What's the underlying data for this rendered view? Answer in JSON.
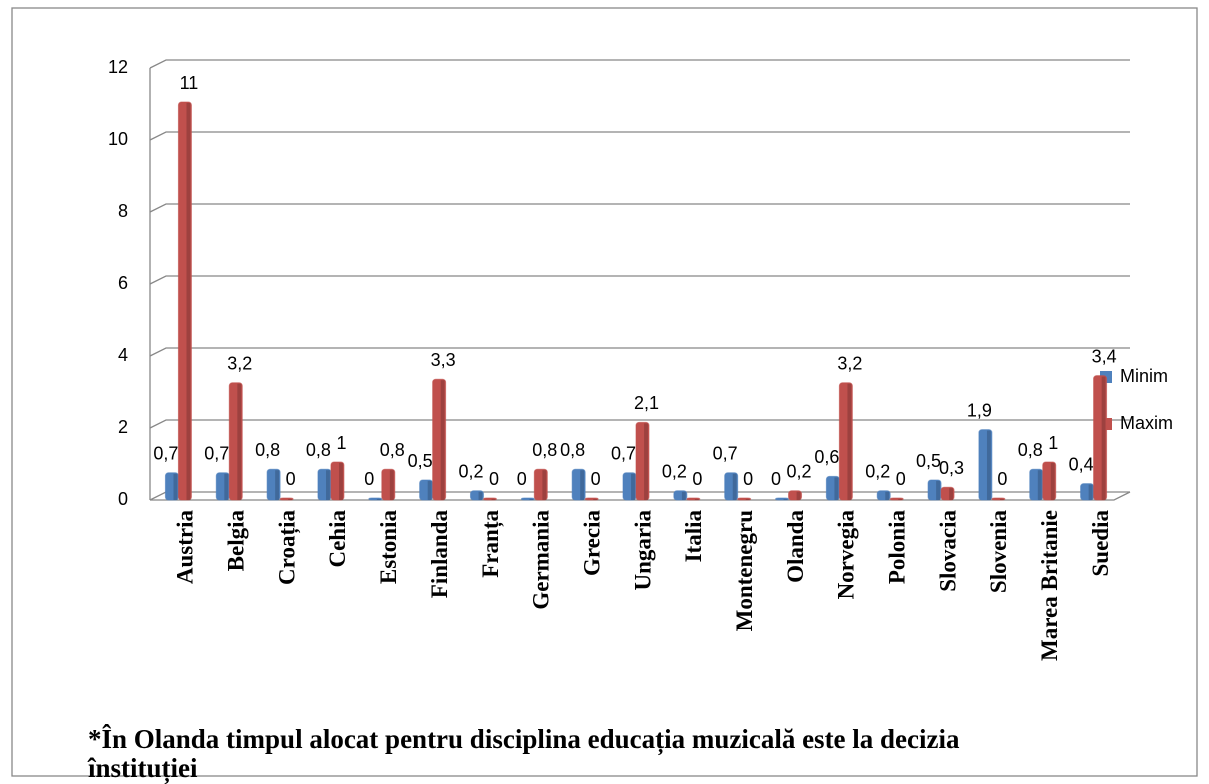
{
  "chart_data": {
    "type": "bar",
    "categories": [
      "Austria",
      "Belgia",
      "Croația",
      "Cehia",
      "Estonia",
      "Finlanda",
      "Franța",
      "Germania",
      "Grecia",
      "Ungaria",
      "Italia",
      "Montenegru",
      "Olanda",
      "Norvegia",
      "Polonia",
      "Slovacia",
      "Slovenia",
      "Marea Britanie",
      "Suedia"
    ],
    "series": [
      {
        "name": "Minim",
        "color": "#4f81bd",
        "values": [
          0.7,
          0.7,
          0.8,
          0.8,
          0,
          0.5,
          0.2,
          0,
          0.8,
          0.7,
          0.2,
          0.7,
          0,
          0.6,
          0.2,
          0.5,
          1.9,
          0.8,
          0.4
        ],
        "value_labels": [
          "0,7",
          "0,7",
          "0,8",
          "0,8",
          "0",
          "0,5",
          "0,2",
          "0",
          "0,8",
          "0,7",
          "0,2",
          "0,7",
          "0",
          "0,6",
          "0,2",
          "0,5",
          "1,9",
          "0,8",
          "0,4"
        ]
      },
      {
        "name": "Maxim",
        "color": "#c0504d",
        "values": [
          11,
          3.2,
          0,
          1,
          0.8,
          3.3,
          0,
          0.8,
          0,
          2.1,
          0,
          0,
          0.2,
          3.2,
          0,
          0.3,
          0,
          1,
          3.4
        ],
        "value_labels": [
          "11",
          "3,2",
          "0",
          "1",
          "0,8",
          "3,3",
          "0",
          "0,8",
          "0",
          "2,1",
          "0",
          "0",
          "0,2",
          "3,2",
          "0",
          "0,3",
          "0",
          "1",
          "3,4"
        ]
      }
    ],
    "ylim": [
      0,
      12
    ],
    "yticks": [
      0,
      2,
      4,
      6,
      8,
      10,
      12
    ],
    "grid": true,
    "legend": "right",
    "note": [
      "*În Olanda timpul alocat pentru disciplina educația muzicală este la decizia",
      "înstituției"
    ]
  }
}
